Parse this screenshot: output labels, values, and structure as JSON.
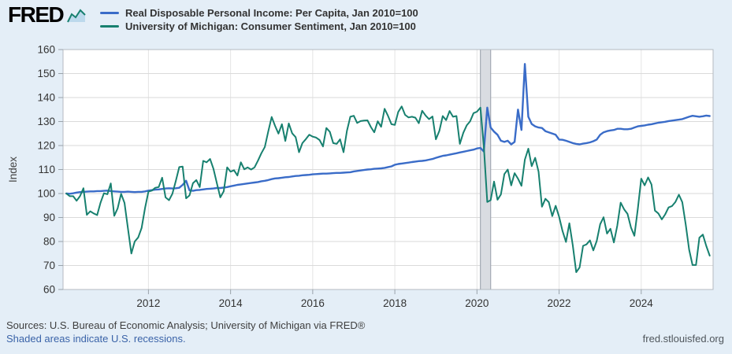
{
  "header": {
    "logo_text": "FRED"
  },
  "legend": {
    "items": [
      {
        "label": "Real Disposable Personal Income: Per Capita, Jan 2010=100"
      },
      {
        "label": "University of Michigan: Consumer Sentiment, Jan 2010=100"
      }
    ]
  },
  "footer": {
    "sources": "Sources: U.S. Bureau of Economic Analysis; University of Michigan via FRED®",
    "recession_note": "Shaded areas indicate U.S. recessions.",
    "site_link": "fred.stlouisfed.org"
  },
  "chart_data": {
    "type": "line",
    "ylabel": "Index",
    "ylim": [
      60,
      160
    ],
    "y_step": 10,
    "xlim": [
      2009.92,
      2025.75
    ],
    "x_ticks": [
      2012,
      2014,
      2016,
      2018,
      2020,
      2022,
      2024
    ],
    "grid": true,
    "legend_position": "top",
    "recessions": [
      {
        "start": 2020.083,
        "end": 2020.333
      }
    ],
    "x_start": 2010.0,
    "x_step_years": 0.08333,
    "series": [
      {
        "name": "Real Disposable Personal Income: Per Capita, Jan 2010=100",
        "color": "#3a6cc8",
        "width": 2.4,
        "values": [
          100.0,
          99.9,
          100.1,
          100.4,
          100.6,
          100.7,
          100.8,
          100.9,
          100.9,
          101.0,
          101.0,
          101.1,
          101.2,
          101.0,
          100.9,
          100.8,
          100.7,
          100.7,
          100.8,
          100.7,
          100.6,
          100.7,
          100.7,
          100.9,
          101.2,
          101.4,
          101.6,
          101.7,
          101.9,
          102.1,
          102.2,
          102.1,
          102.2,
          102.4,
          103.6,
          105.3,
          101.3,
          101.1,
          101.4,
          101.5,
          101.7,
          101.9,
          102.0,
          102.1,
          102.3,
          102.3,
          102.5,
          102.7,
          103.0,
          103.3,
          103.6,
          103.8,
          104.0,
          104.2,
          104.4,
          104.6,
          104.8,
          105.1,
          105.3,
          105.6,
          106.0,
          106.3,
          106.4,
          106.6,
          106.8,
          106.9,
          107.1,
          107.3,
          107.4,
          107.6,
          107.7,
          107.8,
          108.0,
          108.1,
          108.2,
          108.3,
          108.3,
          108.4,
          108.5,
          108.6,
          108.6,
          108.7,
          108.8,
          108.9,
          109.2,
          109.4,
          109.6,
          109.8,
          110.0,
          110.1,
          110.3,
          110.4,
          110.5,
          110.7,
          111.0,
          111.3,
          112.0,
          112.3,
          112.5,
          112.7,
          112.9,
          113.1,
          113.3,
          113.5,
          113.6,
          113.8,
          114.1,
          114.4,
          114.9,
          115.3,
          115.7,
          115.9,
          116.2,
          116.5,
          116.8,
          117.1,
          117.4,
          117.7,
          118.0,
          118.3,
          118.8,
          119.0,
          117.5,
          135.8,
          127.5,
          125.8,
          124.5,
          122.0,
          121.5,
          122.0,
          120.5,
          121.5,
          135.0,
          126.5,
          154.0,
          132.0,
          129.0,
          128.0,
          127.5,
          127.3,
          126.0,
          125.5,
          125.0,
          124.5,
          122.5,
          122.4,
          122.0,
          121.5,
          121.0,
          120.7,
          120.5,
          120.8,
          121.0,
          121.3,
          121.8,
          122.5,
          124.5,
          125.5,
          126.0,
          126.3,
          126.5,
          127.0,
          127.0,
          126.8,
          126.8,
          127.0,
          127.5,
          128.0,
          128.2,
          128.4,
          128.7,
          128.9,
          129.2,
          129.5,
          129.7,
          129.9,
          130.2,
          130.4,
          130.6,
          130.8,
          131.0,
          131.5,
          132.0,
          132.4,
          132.2,
          132.0,
          132.2,
          132.5,
          132.3
        ]
      },
      {
        "name": "University of Michigan: Consumer Sentiment, Jan 2010=100",
        "color": "#17806f",
        "width": 2.0,
        "values": [
          100.0,
          98.9,
          98.9,
          97.0,
          98.9,
          102.2,
          91.1,
          92.6,
          91.7,
          91.0,
          96.2,
          100.1,
          99.7,
          104.2,
          90.7,
          93.8,
          99.9,
          96.1,
          85.6,
          75.0,
          80.0,
          81.7,
          85.6,
          94.0,
          100.8,
          101.2,
          102.4,
          102.7,
          106.6,
          98.4,
          97.2,
          99.9,
          105.2,
          111.0,
          111.2,
          98.0,
          99.2,
          104.3,
          105.6,
          102.7,
          113.6,
          113.0,
          114.4,
          110.3,
          104.2,
          98.4,
          100.9,
          110.9,
          109.1,
          109.7,
          107.5,
          113.0,
          110.1,
          110.9,
          110.0,
          110.9,
          113.7,
          116.8,
          119.4,
          125.8,
          131.9,
          128.2,
          125.0,
          128.9,
          121.9,
          129.2,
          125.1,
          123.5,
          117.2,
          121.0,
          122.7,
          124.5,
          123.7,
          123.3,
          122.3,
          119.6,
          127.3,
          125.7,
          121.0,
          120.7,
          122.6,
          117.2,
          126.1,
          132.0,
          132.4,
          129.4,
          130.2,
          130.4,
          130.5,
          127.7,
          125.5,
          130.1,
          127.8,
          135.3,
          132.4,
          128.9,
          128.6,
          134.0,
          136.3,
          132.8,
          131.7,
          132.0,
          131.6,
          129.3,
          134.5,
          132.5,
          131.0,
          132.1,
          122.6,
          126.1,
          132.3,
          130.6,
          134.4,
          132.0,
          132.3,
          120.7,
          125.3,
          128.4,
          130.1,
          133.5,
          134.1,
          135.8,
          119.8,
          96.5,
          97.2,
          105.0,
          97.4,
          99.6,
          108.1,
          110.0,
          103.4,
          108.5,
          106.2,
          103.2,
          114.1,
          118.7,
          111.4,
          114.9,
          109.1,
          94.5,
          97.8,
          96.4,
          90.6,
          94.9,
          90.3,
          84.4,
          79.8,
          87.6,
          78.5,
          67.2,
          69.2,
          78.2,
          78.8,
          80.5,
          76.3,
          80.2,
          87.2,
          90.1,
          83.3,
          85.3,
          79.6,
          86.6,
          96.2,
          93.4,
          91.5,
          85.8,
          82.4,
          93.7,
          106.2,
          103.4,
          106.7,
          103.8,
          92.9,
          91.7,
          89.2,
          91.3,
          94.2,
          94.8,
          96.5,
          99.5,
          96.4,
          87.0,
          76.6,
          70.2,
          70.2,
          81.6,
          82.9,
          78.2,
          74.1
        ]
      }
    ]
  }
}
